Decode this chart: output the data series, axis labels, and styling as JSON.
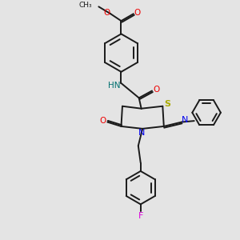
{
  "bg_color": "#e4e4e4",
  "bond_color": "#1a1a1a",
  "N_color": "#0000ee",
  "O_color": "#ee0000",
  "S_color": "#aaaa00",
  "F_color": "#dd00dd",
  "NH_color": "#007070",
  "lw": 1.4,
  "dbo": 0.055,
  "fig_w": 3.0,
  "fig_h": 3.0,
  "dpi": 100,
  "xlim": [
    0,
    10
  ],
  "ylim": [
    0,
    10
  ]
}
